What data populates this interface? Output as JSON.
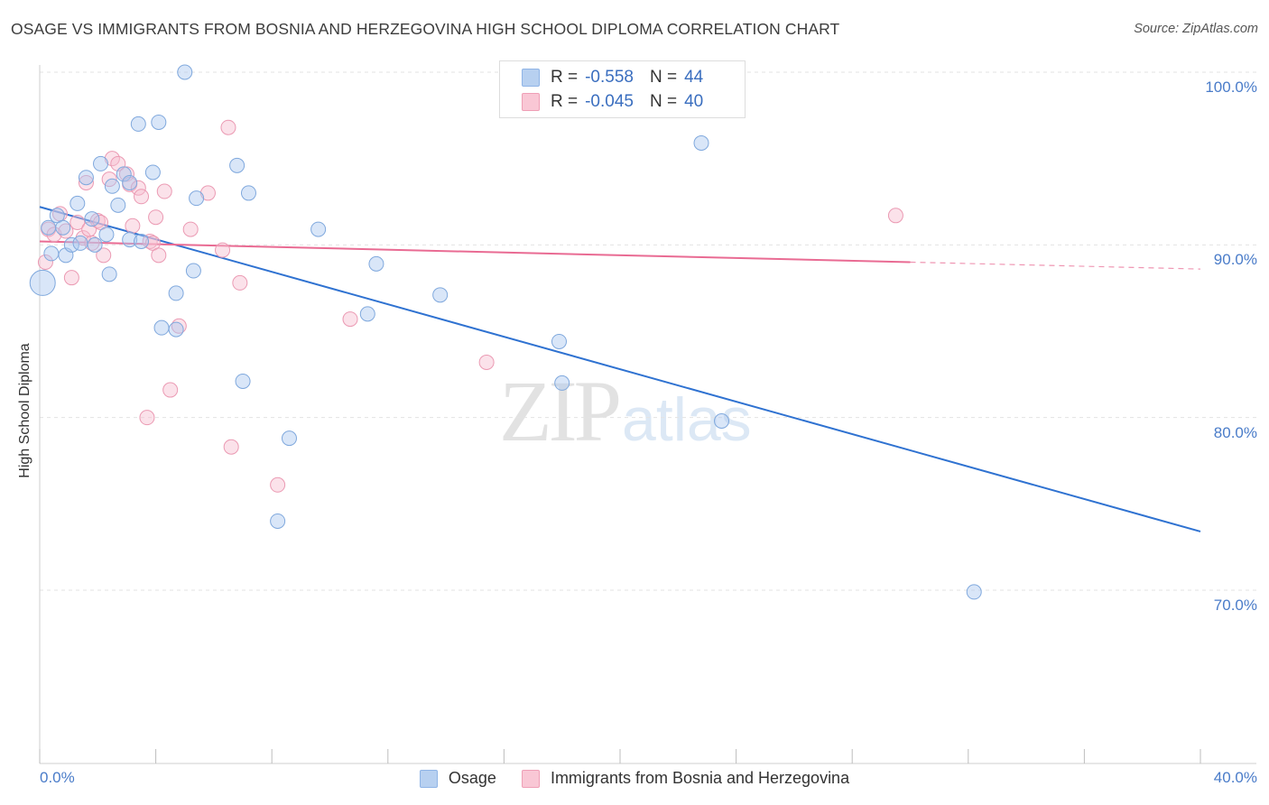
{
  "header": {
    "title": "OSAGE VS IMMIGRANTS FROM BOSNIA AND HERZEGOVINA HIGH SCHOOL DIPLOMA CORRELATION CHART",
    "source": "Source: ZipAtlas.com"
  },
  "watermark": {
    "zip": "ZIP",
    "atlas": "atlas"
  },
  "legend": {
    "r_label": "R =",
    "n_label": "N =",
    "series": [
      {
        "name": "Osage",
        "r": "-0.558",
        "n": "44",
        "fill": "#b7d0f0",
        "stroke": "#8fb4e6"
      },
      {
        "name": "Immigrants from Bosnia and Herzegovina",
        "r": "-0.045",
        "n": "40",
        "fill": "#f9c7d5",
        "stroke": "#ef9fb6"
      }
    ]
  },
  "colors": {
    "blue_line": "#2f72d1",
    "pink_line": "#e96b93",
    "blue_point_fill": "rgba(170,200,240,0.45)",
    "blue_point_stroke": "#7fa8dd",
    "pink_point_fill": "rgba(247,190,208,0.45)",
    "pink_point_stroke": "#eb9ab3",
    "grid": "#e3e3e3",
    "tick_text": "#4a7cc9"
  },
  "chart_data": {
    "type": "scatter",
    "title": "OSAGE VS IMMIGRANTS FROM BOSNIA AND HERZEGOVINA HIGH SCHOOL DIPLOMA CORRELATION CHART",
    "xlabel": "",
    "ylabel": "High School Diploma",
    "xlim": [
      0,
      40
    ],
    "ylim": [
      60,
      101
    ],
    "x_tick_labels": [
      "0.0%",
      "40.0%"
    ],
    "y_ticks": [
      70,
      80,
      90,
      100
    ],
    "y_tick_labels": [
      "70.0%",
      "80.0%",
      "90.0%",
      "100.0%"
    ],
    "grid": true,
    "series": [
      {
        "name": "Osage",
        "r": -0.558,
        "n": 44,
        "trend": {
          "x0": 0,
          "y0": 92.2,
          "x1": 40,
          "y1": 73.4,
          "solid_to": 40
        },
        "points": [
          {
            "x": 0.3,
            "y": 91.0
          },
          {
            "x": 0.4,
            "y": 89.5
          },
          {
            "x": 0.6,
            "y": 91.7
          },
          {
            "x": 0.8,
            "y": 91.0
          },
          {
            "x": 0.9,
            "y": 89.4
          },
          {
            "x": 1.1,
            "y": 90.0
          },
          {
            "x": 1.3,
            "y": 92.4
          },
          {
            "x": 1.4,
            "y": 90.1
          },
          {
            "x": 1.6,
            "y": 93.9
          },
          {
            "x": 1.8,
            "y": 91.5
          },
          {
            "x": 1.9,
            "y": 90.0
          },
          {
            "x": 2.1,
            "y": 94.7
          },
          {
            "x": 2.3,
            "y": 90.6
          },
          {
            "x": 2.4,
            "y": 88.3
          },
          {
            "x": 2.5,
            "y": 93.4
          },
          {
            "x": 2.7,
            "y": 92.3
          },
          {
            "x": 2.9,
            "y": 94.1
          },
          {
            "x": 3.1,
            "y": 93.6
          },
          {
            "x": 3.1,
            "y": 90.3
          },
          {
            "x": 3.4,
            "y": 97.0
          },
          {
            "x": 3.5,
            "y": 90.2
          },
          {
            "x": 3.9,
            "y": 94.2
          },
          {
            "x": 4.1,
            "y": 97.1
          },
          {
            "x": 4.2,
            "y": 85.2
          },
          {
            "x": 4.7,
            "y": 87.2
          },
          {
            "x": 4.7,
            "y": 85.1
          },
          {
            "x": 5.0,
            "y": 100.0
          },
          {
            "x": 5.3,
            "y": 88.5
          },
          {
            "x": 5.4,
            "y": 92.7
          },
          {
            "x": 6.8,
            "y": 94.6
          },
          {
            "x": 7.0,
            "y": 82.1
          },
          {
            "x": 7.2,
            "y": 93.0
          },
          {
            "x": 8.2,
            "y": 74.0
          },
          {
            "x": 8.6,
            "y": 78.8
          },
          {
            "x": 9.6,
            "y": 90.9
          },
          {
            "x": 11.3,
            "y": 86.0
          },
          {
            "x": 11.6,
            "y": 88.9
          },
          {
            "x": 13.8,
            "y": 87.1
          },
          {
            "x": 17.9,
            "y": 84.4
          },
          {
            "x": 18.0,
            "y": 82.0
          },
          {
            "x": 23.5,
            "y": 79.8
          },
          {
            "x": 22.8,
            "y": 95.9
          },
          {
            "x": 32.2,
            "y": 69.9
          },
          {
            "x": 0.1,
            "y": 87.8
          }
        ]
      },
      {
        "name": "Immigrants from Bosnia and Herzegovina",
        "r": -0.045,
        "n": 40,
        "trend": {
          "x0": 0,
          "y0": 90.2,
          "x1": 40,
          "y1": 88.6,
          "solid_to": 30
        },
        "points": [
          {
            "x": 0.2,
            "y": 89.0
          },
          {
            "x": 0.3,
            "y": 90.9
          },
          {
            "x": 0.5,
            "y": 90.6
          },
          {
            "x": 0.7,
            "y": 91.8
          },
          {
            "x": 0.9,
            "y": 90.8
          },
          {
            "x": 1.1,
            "y": 88.1
          },
          {
            "x": 1.3,
            "y": 91.3
          },
          {
            "x": 1.5,
            "y": 90.4
          },
          {
            "x": 1.6,
            "y": 93.6
          },
          {
            "x": 1.7,
            "y": 90.9
          },
          {
            "x": 1.8,
            "y": 90.1
          },
          {
            "x": 2.0,
            "y": 91.4
          },
          {
            "x": 2.1,
            "y": 91.3
          },
          {
            "x": 2.2,
            "y": 89.4
          },
          {
            "x": 2.4,
            "y": 93.8
          },
          {
            "x": 2.5,
            "y": 95.0
          },
          {
            "x": 2.7,
            "y": 94.7
          },
          {
            "x": 3.0,
            "y": 94.1
          },
          {
            "x": 3.1,
            "y": 93.5
          },
          {
            "x": 3.2,
            "y": 91.1
          },
          {
            "x": 3.4,
            "y": 93.3
          },
          {
            "x": 3.5,
            "y": 92.8
          },
          {
            "x": 3.7,
            "y": 80.0
          },
          {
            "x": 3.8,
            "y": 90.2
          },
          {
            "x": 3.9,
            "y": 90.1
          },
          {
            "x": 4.0,
            "y": 91.6
          },
          {
            "x": 4.1,
            "y": 89.4
          },
          {
            "x": 4.3,
            "y": 93.1
          },
          {
            "x": 4.5,
            "y": 81.6
          },
          {
            "x": 4.8,
            "y": 85.3
          },
          {
            "x": 5.2,
            "y": 90.9
          },
          {
            "x": 5.8,
            "y": 93.0
          },
          {
            "x": 6.3,
            "y": 89.7
          },
          {
            "x": 6.5,
            "y": 96.8
          },
          {
            "x": 6.6,
            "y": 78.3
          },
          {
            "x": 6.9,
            "y": 87.8
          },
          {
            "x": 8.2,
            "y": 76.1
          },
          {
            "x": 10.7,
            "y": 85.7
          },
          {
            "x": 15.4,
            "y": 83.2
          },
          {
            "x": 29.5,
            "y": 91.7
          }
        ]
      }
    ]
  }
}
